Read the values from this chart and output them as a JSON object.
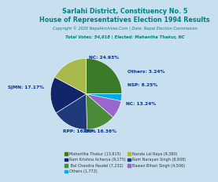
{
  "title1": "Sarlahi District, Constituency No. 5",
  "title2": "House of Representatives Election 1994 Results",
  "copyright": "Copyright © 2020 NepalArchives.Com | Data: Nepal Election Commission",
  "total_votes": "Total Votes: 54,618 | Elected: Mahantha Thakur, NC",
  "slices": [
    {
      "label": "NC: 24.93%",
      "value": 13615,
      "color": "#3a7a28",
      "pct": 24.93
    },
    {
      "label": "Others: 3.24%",
      "value": 1772,
      "color": "#00aaee",
      "pct": 3.24
    },
    {
      "label": "NSP: 8.25%",
      "value": 4506,
      "color": "#9966cc",
      "pct": 8.25
    },
    {
      "label": "NC: 13.24%",
      "value": 7232,
      "color": "#4a8c38",
      "pct": 13.24
    },
    {
      "label": "RPP: 16.36%",
      "value": 8938,
      "color": "#1e3a7a",
      "pct": 16.36
    },
    {
      "label": "RPP: 16.80%",
      "value": 9175,
      "color": "#12256a",
      "pct": 16.8
    },
    {
      "label": "SJMN: 17.17%",
      "value": 9380,
      "color": "#a8b84a",
      "pct": 17.17
    }
  ],
  "legend_items": [
    {
      "color": "#3a7a28",
      "text": "Mahantha Thakur (13,615)"
    },
    {
      "color": "#12256a",
      "text": "Ram Krishna Acharya (9,175)"
    },
    {
      "color": "#4a8c38",
      "text": " Bal Chandra Paudel (7,232)"
    },
    {
      "color": "#00aaee",
      "text": "Others (1,772)"
    },
    {
      "color": "#a8b84a",
      "text": "Nanda Lal Raya (9,380)"
    },
    {
      "color": "#1e3a7a",
      "text": "Ram Narayan Singh (8,938)"
    },
    {
      "color": "#9966cc",
      "text": "Bawan Bihari Singh (4,506)"
    }
  ],
  "title_color": "#008080",
  "label_color": "#003399",
  "background_color": "#c8dff0"
}
